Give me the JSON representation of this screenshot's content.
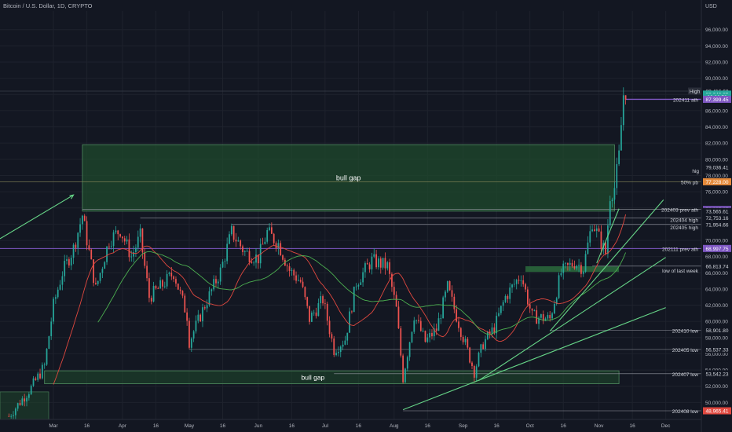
{
  "header": {
    "symbol_title": "Bitcoin / U.S. Dollar, 1D, CRYPTO",
    "currency": "USD"
  },
  "chart_data": {
    "type": "candlestick",
    "y_axis": {
      "ticks": [
        50000,
        52000,
        54000,
        56000,
        58000,
        60000,
        62000,
        64000,
        66000,
        68000,
        70000,
        72000,
        74000,
        76000,
        78000,
        80000,
        82000,
        84000,
        86000,
        88000,
        90000,
        92000,
        94000,
        96000
      ],
      "tick_labels": [
        "50,000.00",
        "52,000.00",
        "54,000.00",
        "56,000.00",
        "58,000.00",
        "60,000.00",
        "62,000.00",
        "64,000.00",
        "66,000.00",
        "68,000.00",
        "70,000.00",
        "72,000.00",
        "74,000.00",
        "76,000.00",
        "78,000.00",
        "80,000.00",
        "82,000.00",
        "84,000.00",
        "86,000.00",
        "88,000.00",
        "90,000.00",
        "92,000.00",
        "94,000.00",
        "96,000.00"
      ],
      "range": [
        47900,
        98300
      ]
    },
    "x_axis": {
      "labels": [
        "Mar",
        "16",
        "Apr",
        "16",
        "May",
        "16",
        "Jun",
        "16",
        "Jul",
        "16",
        "Aug",
        "16",
        "Sep",
        "16",
        "Oct",
        "16",
        "Nov",
        "16",
        "Dec"
      ],
      "label_dates": [
        "2024-03-01",
        "2024-03-16",
        "2024-04-01",
        "2024-04-16",
        "2024-05-01",
        "2024-05-16",
        "2024-06-01",
        "2024-06-16",
        "2024-07-01",
        "2024-07-16",
        "2024-08-01",
        "2024-08-16",
        "2024-09-01",
        "2024-09-16",
        "2024-10-01",
        "2024-10-16",
        "2024-11-01",
        "2024-11-16",
        "2024-12-01"
      ]
    },
    "price_series": [
      [
        "2024-02-10",
        48300
      ],
      [
        "2024-02-20",
        51800
      ],
      [
        "2024-02-26",
        54500
      ],
      [
        "2024-03-01",
        62000
      ],
      [
        "2024-03-05",
        66000
      ],
      [
        "2024-03-10",
        69000
      ],
      [
        "2024-03-14",
        73100
      ],
      [
        "2024-03-20",
        64000
      ],
      [
        "2024-03-26",
        70000
      ],
      [
        "2024-03-31",
        71300
      ],
      [
        "2024-04-05",
        68000
      ],
      [
        "2024-04-09",
        70500
      ],
      [
        "2024-04-13",
        63000
      ],
      [
        "2024-04-19",
        64500
      ],
      [
        "2024-04-24",
        66000
      ],
      [
        "2024-04-30",
        60700
      ],
      [
        "2024-05-01",
        57500
      ],
      [
        "2024-05-08",
        62000
      ],
      [
        "2024-05-15",
        66200
      ],
      [
        "2024-05-20",
        71000
      ],
      [
        "2024-05-26",
        68500
      ],
      [
        "2024-06-01",
        67800
      ],
      [
        "2024-06-05",
        71000
      ],
      [
        "2024-06-10",
        69600
      ],
      [
        "2024-06-15",
        66300
      ],
      [
        "2024-06-20",
        64900
      ],
      [
        "2024-06-24",
        60300
      ],
      [
        "2024-06-30",
        62700
      ],
      [
        "2024-07-05",
        56500
      ],
      [
        "2024-07-10",
        57800
      ],
      [
        "2024-07-15",
        64800
      ],
      [
        "2024-07-22",
        67500
      ],
      [
        "2024-07-29",
        66800
      ],
      [
        "2024-08-02",
        61500
      ],
      [
        "2024-08-05",
        53000
      ],
      [
        "2024-08-10",
        60800
      ],
      [
        "2024-08-15",
        57500
      ],
      [
        "2024-08-20",
        59000
      ],
      [
        "2024-08-25",
        64200
      ],
      [
        "2024-08-31",
        58900
      ],
      [
        "2024-09-06",
        53800
      ],
      [
        "2024-09-10",
        57300
      ],
      [
        "2024-09-15",
        59200
      ],
      [
        "2024-09-20",
        63000
      ],
      [
        "2024-09-27",
        65800
      ],
      [
        "2024-10-02",
        60600
      ],
      [
        "2024-10-10",
        60300
      ],
      [
        "2024-10-15",
        66000
      ],
      [
        "2024-10-21",
        67300
      ],
      [
        "2024-10-25",
        66600
      ],
      [
        "2024-10-29",
        72300
      ],
      [
        "2024-11-04",
        68400
      ],
      [
        "2024-11-06",
        75600
      ],
      [
        "2024-11-08",
        76500
      ],
      [
        "2024-11-10",
        80400
      ],
      [
        "2024-11-12",
        88000
      ],
      [
        "2024-11-13",
        88416.68
      ]
    ],
    "lines": [
      {
        "label": "202411 ath",
        "value": 87399.45
      },
      {
        "label": "High",
        "value": 88416.68
      },
      {
        "label": "50% pb",
        "value": 77228.0
      },
      {
        "label": "202403 prev ath",
        "value": 73805.27
      },
      {
        "label": "202404 high",
        "value": 72753.16
      },
      {
        "label": "202405 high",
        "value": 71954.66
      },
      {
        "label": "202111 prev ath",
        "value": 68997.75
      },
      {
        "label": "low of last week",
        "value": 66813.74
      },
      {
        "label": "202410 low",
        "value": 58901.8
      },
      {
        "label": "202405 low",
        "value": 56537.33
      },
      {
        "label": "202407 low",
        "value": 53542.23
      },
      {
        "label": "202408 low",
        "value": 48965.41
      }
    ],
    "zones": [
      {
        "label": "bull gap",
        "from": "2024-03-14",
        "to": "2024-11-08",
        "low": 73600,
        "high": 81800
      },
      {
        "label": "bull gap",
        "from": "2024-02-26",
        "to": "2024-11-10",
        "low": 52300,
        "high": 53900
      }
    ],
    "price_labels": [
      {
        "text": "88,416.68",
        "value": 88416.68,
        "color": "#d1d4dc",
        "bg": "#131722"
      },
      {
        "text": "88,040.85",
        "value": 88040.85,
        "color": "#ffffff",
        "bg": "#26a69a"
      },
      {
        "text": "02:26:53",
        "value": 87700,
        "color": "#ffffff",
        "bg": "#26a69a"
      },
      {
        "text": "87,399.45",
        "value": 87399.45,
        "color": "#ffffff",
        "bg": "#7e57c2"
      },
      {
        "text": "79,036.41",
        "value": 79036.41,
        "color": "#d1d4dc",
        "bg": "#131722"
      },
      {
        "text": "77,228.00",
        "value": 77228.0,
        "color": "#ffffff",
        "bg": "#e68a3a"
      },
      {
        "text": "73,805.27",
        "value": 73805.27,
        "color": "#ffffff",
        "bg": "#7e57c2"
      },
      {
        "text": "73,565.61",
        "value": 73565.61,
        "color": "#d1d4dc",
        "bg": "#131722"
      },
      {
        "text": "72,753.16",
        "value": 72753.16,
        "color": "#d1d4dc",
        "bg": "#131722"
      },
      {
        "text": "71,954.66",
        "value": 71954.66,
        "color": "#d1d4dc",
        "bg": "#131722"
      },
      {
        "text": "68,997.75",
        "value": 68997.75,
        "color": "#ffffff",
        "bg": "#7e57c2"
      },
      {
        "text": "66,922.68",
        "value": 66922.68,
        "color": "#d1d4dc",
        "bg": "#131722"
      },
      {
        "text": "66,813.74",
        "value": 66813.74,
        "color": "#d1d4dc",
        "bg": "#131722"
      },
      {
        "text": "58,901.80",
        "value": 58901.8,
        "color": "#d1d4dc",
        "bg": "#131722"
      },
      {
        "text": "56,537.33",
        "value": 56537.33,
        "color": "#d1d4dc",
        "bg": "#131722"
      },
      {
        "text": "53,542.23",
        "value": 53542.23,
        "color": "#d1d4dc",
        "bg": "#131722"
      },
      {
        "text": "49,111.87",
        "value": 49111.87,
        "color": "#d1d4dc",
        "bg": "#131722"
      },
      {
        "text": "48,965.41",
        "value": 48965.41,
        "color": "#ffffff",
        "bg": "#e0483f"
      }
    ],
    "short_labels": [
      {
        "text": "hig",
        "value": 79036.41
      }
    ],
    "colors": {
      "background": "#131722",
      "up": "#26a69a",
      "down": "#ef5350",
      "trend": "#66d487",
      "purple": "#7e57c2",
      "zone": "#1f4a2c",
      "orange": "#e68a3a"
    }
  }
}
